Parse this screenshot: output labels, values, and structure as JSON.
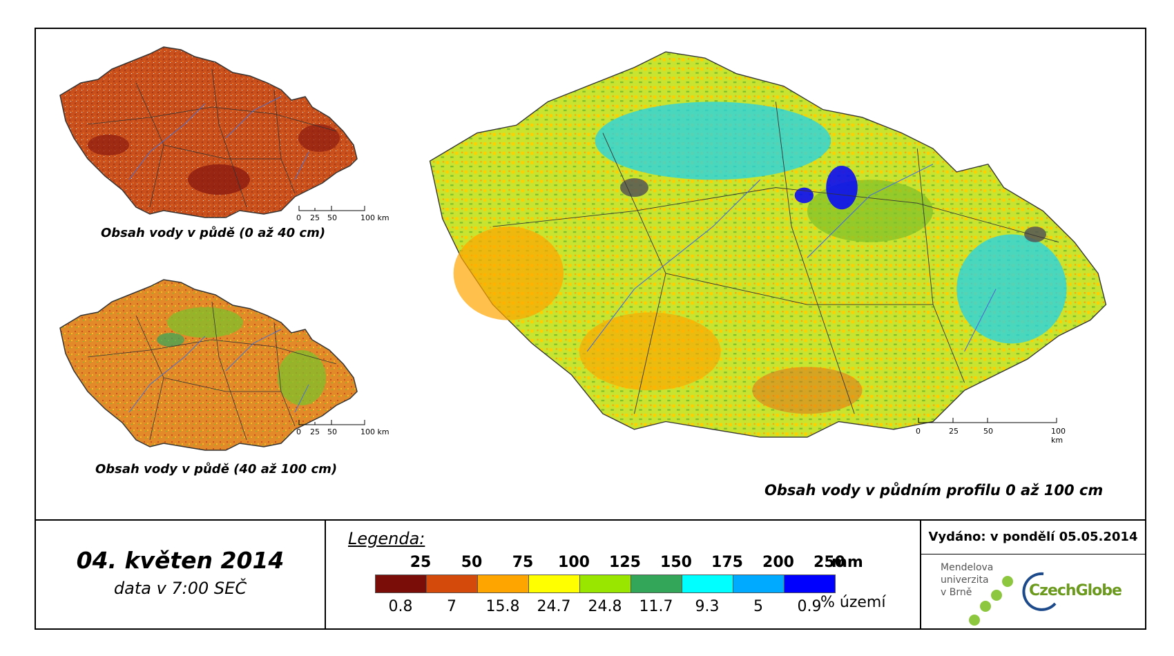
{
  "maps": {
    "top_left": {
      "caption": "Obsah vody v půdě (0 až 40 cm)",
      "base_color": "#c9501c",
      "accent_color": "#8b1a10"
    },
    "bottom_left": {
      "caption": "Obsah vody v půdě (40 až 100 cm)",
      "base_color": "#e28a2a",
      "accent_color": "#7fbf2a"
    },
    "main": {
      "caption": "Obsah vody v půdním profilu 0 až 100 cm",
      "base_color": "#c8e430",
      "accent_color": "#1fd3ee"
    }
  },
  "scalebar": {
    "labels": [
      "0",
      "25",
      "50",
      "100 km"
    ]
  },
  "date": {
    "title": "04. květen 2014",
    "subtitle": "data v 7:00 SEČ"
  },
  "legend": {
    "title": "Legenda:",
    "unit_mm": "mm",
    "unit_pct": "% území",
    "classes": [
      {
        "upper": "25",
        "color": "#7a0d08",
        "pct": "0.8"
      },
      {
        "upper": "50",
        "color": "#d44a0a",
        "pct": "7"
      },
      {
        "upper": "75",
        "color": "#ffa500",
        "pct": "15.8"
      },
      {
        "upper": "100",
        "color": "#ffff00",
        "pct": "24.7"
      },
      {
        "upper": "125",
        "color": "#99e600",
        "pct": "24.8"
      },
      {
        "upper": "150",
        "color": "#33a65a",
        "pct": "11.7"
      },
      {
        "upper": "175",
        "color": "#00ffff",
        "pct": "9.3"
      },
      {
        "upper": "200",
        "color": "#00aaff",
        "pct": "5"
      },
      {
        "upper": "250",
        "color": "#0000ff",
        "pct": "0.9"
      }
    ]
  },
  "issued": {
    "text": "Vydáno: v pondělí 05.05.2014"
  },
  "logos": {
    "mendel": {
      "lines": [
        "Mendelova",
        "univerzita",
        "v Brně"
      ],
      "dot_color": "#8dc63f"
    },
    "czechglobe": {
      "text": "CzechGlobe",
      "color": "#6b9a1e",
      "ring_color": "#1d4a8a"
    }
  }
}
